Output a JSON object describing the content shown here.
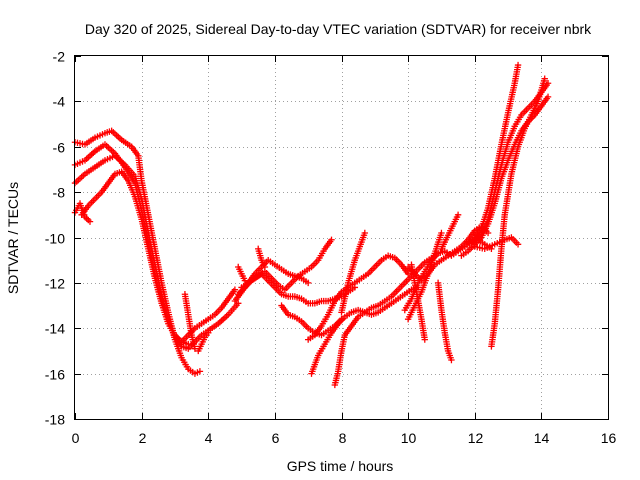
{
  "chart_data": {
    "type": "scatter",
    "title": "Day 320 of 2025, Sidereal Day-to-day VTEC variation (SDTVAR) for receiver nbrk",
    "xlabel": "GPS time / hours",
    "ylabel": "SDTVAR / TECUs",
    "xlim": [
      0,
      16
    ],
    "ylim": [
      -18,
      -2
    ],
    "xticks": [
      0,
      2,
      4,
      6,
      8,
      10,
      12,
      14,
      16
    ],
    "yticks": [
      -18,
      -16,
      -14,
      -12,
      -10,
      -8,
      -6,
      -4,
      -2
    ],
    "grid": true,
    "marker": "plus",
    "color": "#ff0000",
    "series": [
      {
        "x": [
          0.0,
          0.3,
          0.6,
          0.9,
          1.1,
          1.4,
          1.7,
          1.9,
          2.0,
          2.2,
          2.4,
          2.6,
          2.8,
          3.0,
          3.2,
          3.4,
          3.6,
          3.75
        ],
        "y": [
          -5.8,
          -5.9,
          -5.6,
          -5.4,
          -5.3,
          -5.7,
          -6.0,
          -6.4,
          -7.5,
          -9.0,
          -10.5,
          -12.0,
          -13.3,
          -14.5,
          -15.3,
          -15.8,
          -16.0,
          -15.9
        ]
      },
      {
        "x": [
          0.0,
          0.3,
          0.6,
          0.9,
          1.2,
          1.5,
          1.8,
          2.0,
          2.2,
          2.4,
          2.6,
          2.8,
          3.0,
          3.2,
          3.4,
          3.6,
          3.8,
          4.0,
          4.2,
          4.4,
          4.6,
          4.8
        ],
        "y": [
          -6.8,
          -6.6,
          -6.2,
          -5.9,
          -6.3,
          -6.9,
          -7.6,
          -8.8,
          -10.2,
          -11.6,
          -12.8,
          -13.7,
          -14.4,
          -14.6,
          -14.3,
          -14.0,
          -13.8,
          -13.6,
          -13.4,
          -13.1,
          -12.7,
          -12.3
        ]
      },
      {
        "x": [
          0.0,
          0.3,
          0.6,
          0.9,
          1.2,
          1.5,
          1.8,
          2.0,
          2.2,
          2.4,
          2.6,
          2.8,
          3.0,
          3.2,
          3.4,
          3.6,
          3.8,
          4.0,
          4.3,
          4.6,
          4.9
        ],
        "y": [
          -7.6,
          -7.2,
          -6.9,
          -6.6,
          -6.4,
          -6.8,
          -7.3,
          -8.3,
          -9.8,
          -11.2,
          -12.5,
          -13.6,
          -14.4,
          -14.8,
          -14.9,
          -14.6,
          -14.3,
          -14.1,
          -13.8,
          -13.4,
          -12.9
        ]
      },
      {
        "x": [
          0.2,
          0.4,
          0.6,
          0.8,
          1.0,
          1.2,
          1.4,
          1.6,
          1.8,
          2.0,
          2.2,
          2.4,
          2.6,
          2.8,
          3.0,
          3.2,
          3.4
        ],
        "y": [
          -9.0,
          -8.6,
          -8.3,
          -8.0,
          -7.6,
          -7.2,
          -7.1,
          -7.5,
          -8.2,
          -9.2,
          -10.5,
          -11.8,
          -12.9,
          -13.8,
          -14.3,
          -14.6,
          -14.7
        ]
      },
      {
        "x": [
          0.0,
          0.15,
          0.3,
          0.45
        ],
        "y": [
          -8.9,
          -8.5,
          -9.1,
          -9.3
        ]
      },
      {
        "x": [
          3.3,
          3.4,
          3.5,
          3.6,
          3.7,
          3.8,
          3.9,
          4.0
        ],
        "y": [
          -12.5,
          -13.4,
          -14.3,
          -14.9,
          -15.0,
          -14.7,
          -14.4,
          -14.2
        ]
      },
      {
        "x": [
          4.8,
          5.0,
          5.2,
          5.4,
          5.6,
          5.8,
          6.0,
          6.2,
          6.4,
          6.6,
          6.8,
          7.0
        ],
        "y": [
          -12.8,
          -12.4,
          -12.0,
          -11.6,
          -11.3,
          -11.0,
          -11.2,
          -11.4,
          -11.6,
          -11.7,
          -11.8,
          -12.0
        ]
      },
      {
        "x": [
          4.9,
          5.1,
          5.3,
          5.5,
          5.7,
          5.9,
          6.1,
          6.3,
          6.5,
          6.7,
          6.9,
          7.1,
          7.3,
          7.5,
          7.7
        ],
        "y": [
          -12.5,
          -12.2,
          -11.9,
          -11.7,
          -11.5,
          -11.8,
          -12.1,
          -12.3,
          -12.0,
          -11.7,
          -11.5,
          -11.3,
          -11.0,
          -10.5,
          -10.1
        ]
      },
      {
        "x": [
          5.0,
          5.2,
          5.4,
          5.6,
          5.8,
          6.0,
          6.2,
          6.4,
          6.6,
          6.8,
          7.0,
          7.2,
          7.4,
          7.6,
          7.8,
          8.0,
          8.2,
          8.4
        ],
        "y": [
          -12.2,
          -12.0,
          -11.8,
          -11.6,
          -11.9,
          -12.2,
          -12.5,
          -12.6,
          -12.6,
          -12.7,
          -12.9,
          -12.9,
          -12.8,
          -12.8,
          -12.7,
          -12.6,
          -12.4,
          -12.2
        ]
      },
      {
        "x": [
          5.5,
          5.6,
          5.7
        ],
        "y": [
          -10.5,
          -11.0,
          -11.3
        ]
      },
      {
        "x": [
          4.9,
          5.0,
          5.1
        ],
        "y": [
          -11.3,
          -11.6,
          -11.9
        ]
      },
      {
        "x": [
          6.2,
          6.4,
          6.6,
          6.8,
          7.0,
          7.2,
          7.4,
          7.6,
          7.8,
          8.0
        ],
        "y": [
          -13.0,
          -13.4,
          -13.5,
          -13.7,
          -14.0,
          -14.2,
          -14.3,
          -14.1,
          -13.9,
          -13.6
        ]
      },
      {
        "x": [
          7.0,
          7.2,
          7.4,
          7.6,
          7.8,
          8.0,
          8.2,
          8.4,
          8.6,
          8.8,
          9.0,
          9.2,
          9.4,
          9.6,
          9.8,
          10.0
        ],
        "y": [
          -14.5,
          -14.3,
          -13.9,
          -13.4,
          -12.8,
          -12.4,
          -12.2,
          -12.0,
          -11.8,
          -11.6,
          -11.3,
          -11.0,
          -10.8,
          -10.9,
          -11.2,
          -11.6
        ]
      },
      {
        "x": [
          7.1,
          7.2,
          7.3,
          7.5,
          7.7,
          7.9,
          8.1,
          8.3,
          8.5,
          8.7,
          8.9,
          9.1,
          9.3,
          9.5,
          9.7,
          9.9,
          10.1,
          10.3
        ],
        "y": [
          -16.0,
          -15.6,
          -15.2,
          -14.7,
          -14.2,
          -13.8,
          -13.5,
          -13.3,
          -13.2,
          -13.3,
          -13.4,
          -13.3,
          -13.1,
          -12.9,
          -12.7,
          -12.5,
          -12.3,
          -12.2
        ]
      },
      {
        "x": [
          7.8,
          7.9,
          8.0,
          8.1,
          8.3,
          8.5,
          8.7,
          8.9,
          9.1,
          9.3,
          9.5,
          9.7,
          9.9,
          10.1,
          10.3,
          10.5,
          10.7,
          10.9
        ],
        "y": [
          -16.5,
          -15.9,
          -15.0,
          -14.3,
          -13.9,
          -13.5,
          -13.3,
          -13.1,
          -13.0,
          -12.8,
          -12.6,
          -12.3,
          -12.0,
          -11.7,
          -11.4,
          -11.1,
          -10.9,
          -10.7
        ]
      },
      {
        "x": [
          8.0,
          8.2,
          8.4,
          8.6,
          8.7
        ],
        "y": [
          -13.3,
          -12.0,
          -11.0,
          -10.2,
          -9.8
        ]
      },
      {
        "x": [
          9.9,
          10.1,
          10.3,
          10.5,
          10.7,
          10.9,
          11.1,
          11.3,
          11.5,
          11.7,
          11.9,
          12.1,
          12.3,
          12.5
        ],
        "y": [
          -13.2,
          -12.7,
          -12.0,
          -11.5,
          -11.0,
          -10.7,
          -10.6,
          -10.8,
          -10.6,
          -10.4,
          -10.2,
          -10.1,
          -10.3,
          -10.5
        ]
      },
      {
        "x": [
          10.0,
          10.2,
          10.4,
          10.6,
          10.8,
          11.0,
          11.2,
          11.4,
          11.6,
          11.8,
          12.0,
          12.2,
          12.4
        ],
        "y": [
          -11.3,
          -11.6,
          -11.9,
          -11.6,
          -11.2,
          -11.0,
          -10.8,
          -10.6,
          -10.4,
          -10.1,
          -9.7,
          -9.5,
          -9.8
        ]
      },
      {
        "x": [
          10.0,
          10.2,
          10.4,
          10.6,
          10.8,
          11.0
        ],
        "y": [
          -13.6,
          -13.0,
          -12.4,
          -11.6,
          -10.7,
          -9.8
        ]
      },
      {
        "x": [
          10.1,
          10.2,
          10.3,
          10.4,
          10.5
        ],
        "y": [
          -11.2,
          -12.0,
          -12.8,
          -13.6,
          -14.5
        ]
      },
      {
        "x": [
          10.9,
          11.0,
          11.1,
          11.2,
          11.3
        ],
        "y": [
          -12.0,
          -13.2,
          -14.2,
          -15.0,
          -15.4
        ]
      },
      {
        "x": [
          11.0,
          11.2,
          11.4,
          11.5
        ],
        "y": [
          -10.5,
          -9.9,
          -9.3,
          -9.0
        ]
      },
      {
        "x": [
          11.6,
          11.8,
          12.0,
          12.2,
          12.4,
          12.6,
          12.8,
          13.0,
          13.2,
          13.4,
          13.6,
          13.8,
          14.0,
          14.2
        ],
        "y": [
          -10.8,
          -10.6,
          -10.3,
          -10.0,
          -9.4,
          -8.5,
          -7.4,
          -6.6,
          -5.9,
          -5.3,
          -4.9,
          -4.6,
          -4.2,
          -3.8
        ]
      },
      {
        "x": [
          11.8,
          12.0,
          12.2,
          12.4,
          12.6,
          12.8,
          13.0,
          13.2,
          13.4,
          13.6,
          13.8,
          14.0,
          14.2
        ],
        "y": [
          -10.2,
          -10.1,
          -9.8,
          -9.2,
          -8.0,
          -6.8,
          -5.8,
          -5.1,
          -4.6,
          -4.3,
          -4.0,
          -3.6,
          -3.2
        ]
      },
      {
        "x": [
          12.0,
          12.2,
          12.4,
          12.6,
          12.8,
          13.0,
          13.2,
          13.3
        ],
        "y": [
          -10.0,
          -9.6,
          -8.7,
          -7.4,
          -5.9,
          -4.5,
          -3.2,
          -2.4
        ]
      },
      {
        "x": [
          12.5,
          12.6,
          12.7,
          12.8,
          12.9,
          13.1,
          13.3,
          13.5,
          13.7,
          13.9,
          14.1
        ],
        "y": [
          -14.8,
          -13.8,
          -12.3,
          -10.5,
          -9.0,
          -7.2,
          -6.0,
          -5.2,
          -4.6,
          -4.0,
          -3.0
        ]
      },
      {
        "x": [
          12.0,
          12.3,
          12.6,
          12.9,
          13.1,
          13.3
        ],
        "y": [
          -10.4,
          -10.5,
          -10.3,
          -10.1,
          -10.0,
          -10.3
        ]
      }
    ]
  }
}
